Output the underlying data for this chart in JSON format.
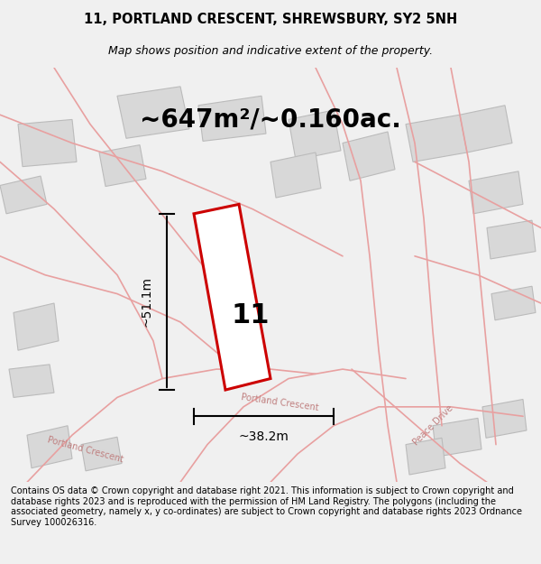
{
  "title_line1": "11, PORTLAND CRESCENT, SHREWSBURY, SY2 5NH",
  "title_line2": "Map shows position and indicative extent of the property.",
  "area_text": "~647m²/~0.160ac.",
  "property_number": "11",
  "dim_width": "~38.2m",
  "dim_height": "~51.1m",
  "footer_text": "Contains OS data © Crown copyright and database right 2021. This information is subject to Crown copyright and database rights 2023 and is reproduced with the permission of HM Land Registry. The polygons (including the associated geometry, namely x, y co-ordinates) are subject to Crown copyright and database rights 2023 Ordnance Survey 100026316.",
  "bg_color": "#f0f0f0",
  "map_bg": "#f5f5f5",
  "road_color": "#ffffff",
  "building_fill": "#d8d8d8",
  "building_edge": "#bbbbbb",
  "plot_line_color": "#cc0000",
  "plot_fill": "#ffffff",
  "street_line_color": "#e8a0a0",
  "dim_line_color": "#000000",
  "text_color": "#000000",
  "street_text_color": "#c08080"
}
